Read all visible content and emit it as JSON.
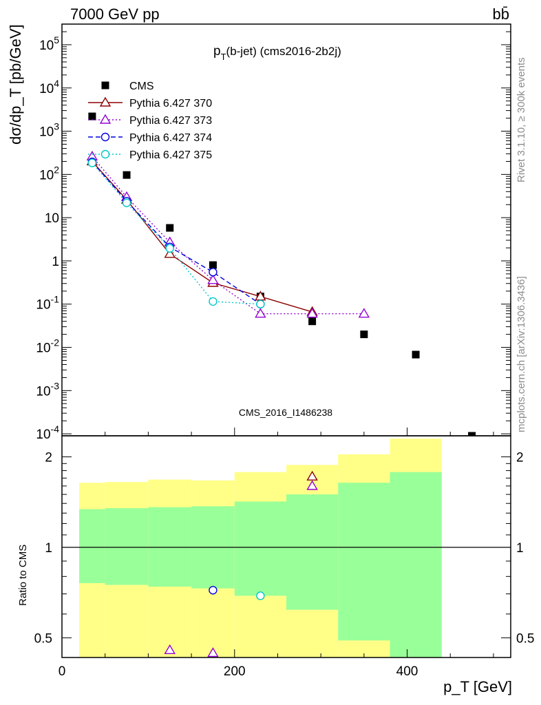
{
  "header": {
    "energy_label": "7000 GeV pp",
    "process_label": "bb̄",
    "plot_title_main": "p",
    "plot_title_sub": "T",
    "plot_title_rest": "(b-jet) (cms2016-2b2j)",
    "watermark": "CMS_2016_I1486238"
  },
  "side_text": {
    "rivet": "Rivet 3.1.10, ≥ 300k events",
    "mcplots": "mcplots.cern.ch [arXiv:1306.3436]"
  },
  "axes": {
    "ylabel_main": "dσ/dp_T [pb/GeV]",
    "ylabel_ratio": "Ratio to CMS",
    "xlabel": "p_T [GeV]",
    "x_ticks": [
      "0",
      "200",
      "400"
    ],
    "ratio_ticks": [
      "0.5",
      "1",
      "2"
    ],
    "main_ticks": [
      "10^-4",
      "10^-3",
      "10^-2",
      "10^-1",
      "1",
      "10",
      "10^2",
      "10^3",
      "10^4",
      "10^5"
    ]
  },
  "chart_data": {
    "type": "scatter",
    "x_scale": "linear",
    "y_scale": "log",
    "xlim": [
      0,
      520
    ],
    "ylim": [
      9e-05,
      300000
    ],
    "ratio_ylim": [
      0.43,
      2.35
    ],
    "ratio_scale": "log",
    "legend_position": "top-left",
    "colors": {
      "CMS": "#000000",
      "p370": "#8b0000",
      "p373": "#9400d3",
      "p374": "#0000dd",
      "p375": "#00c8c8",
      "band_inner": "#99ff99",
      "band_outer": "#ffff88"
    },
    "series": [
      {
        "name": "CMS",
        "marker": "square",
        "points": [
          [
            35,
            2200
          ],
          [
            75,
            97
          ],
          [
            125,
            5.8
          ],
          [
            175,
            0.8
          ],
          [
            230,
            0.15
          ],
          [
            290,
            0.04
          ],
          [
            350,
            0.02
          ],
          [
            410,
            0.0068
          ],
          [
            475,
            9e-05
          ]
        ]
      },
      {
        "name": "Pythia 6.427 370",
        "style": "solid",
        "marker": "triangle",
        "points": [
          [
            35,
            200
          ],
          [
            75,
            26
          ],
          [
            125,
            1.45
          ],
          [
            175,
            0.31
          ],
          [
            230,
            0.15
          ],
          [
            290,
            0.066
          ]
        ]
      },
      {
        "name": "Pythia 6.427 373",
        "style": "dotted",
        "marker": "triangle",
        "points": [
          [
            35,
            260
          ],
          [
            75,
            30
          ],
          [
            125,
            2.7
          ],
          [
            175,
            0.36
          ],
          [
            230,
            0.06
          ],
          [
            290,
            0.06
          ],
          [
            350,
            0.06
          ]
        ]
      },
      {
        "name": "Pythia 6.427 374",
        "style": "dashed",
        "marker": "circle",
        "points": [
          [
            35,
            195
          ],
          [
            75,
            24
          ],
          [
            125,
            2.1
          ],
          [
            175,
            0.55
          ],
          [
            230,
            0.1
          ]
        ]
      },
      {
        "name": "Pythia 6.427 375",
        "style": "dotted",
        "marker": "circle",
        "points": [
          [
            35,
            185
          ],
          [
            75,
            22
          ],
          [
            125,
            1.95
          ],
          [
            175,
            0.115
          ],
          [
            230,
            0.1
          ]
        ]
      }
    ],
    "ratio_band": [
      {
        "x": [
          20,
          50
        ],
        "inner": [
          0.76,
          1.34
        ],
        "outer": [
          0.38,
          1.64
        ]
      },
      {
        "x": [
          50,
          100
        ],
        "inner": [
          0.75,
          1.35
        ],
        "outer": [
          0.38,
          1.65
        ]
      },
      {
        "x": [
          100,
          150
        ],
        "inner": [
          0.74,
          1.36
        ],
        "outer": [
          0.37,
          1.68
        ]
      },
      {
        "x": [
          150,
          200
        ],
        "inner": [
          0.73,
          1.37
        ],
        "outer": [
          0.37,
          1.67
        ]
      },
      {
        "x": [
          200,
          260
        ],
        "inner": [
          0.69,
          1.42
        ],
        "outer": [
          0.36,
          1.78
        ]
      },
      {
        "x": [
          260,
          320
        ],
        "inner": [
          0.62,
          1.5
        ],
        "outer": [
          0.33,
          1.88
        ]
      },
      {
        "x": [
          320,
          380
        ],
        "inner": [
          0.49,
          1.64
        ],
        "outer": [
          0.3,
          2.04
        ]
      },
      {
        "x": [
          380,
          440
        ],
        "inner": [
          0.3,
          1.78
        ],
        "outer": [
          0.3,
          2.3
        ]
      }
    ],
    "ratio_series": [
      {
        "name": "Pythia 6.427 370",
        "points": [
          [
            290,
            1.72
          ]
        ]
      },
      {
        "name": "Pythia 6.427 373",
        "points": [
          [
            125,
            0.455
          ],
          [
            175,
            0.445
          ],
          [
            290,
            1.6
          ]
        ]
      },
      {
        "name": "Pythia 6.427 374",
        "points": [
          [
            175,
            0.72
          ]
        ]
      },
      {
        "name": "Pythia 6.427 375",
        "points": [
          [
            230,
            0.69
          ]
        ]
      }
    ]
  }
}
